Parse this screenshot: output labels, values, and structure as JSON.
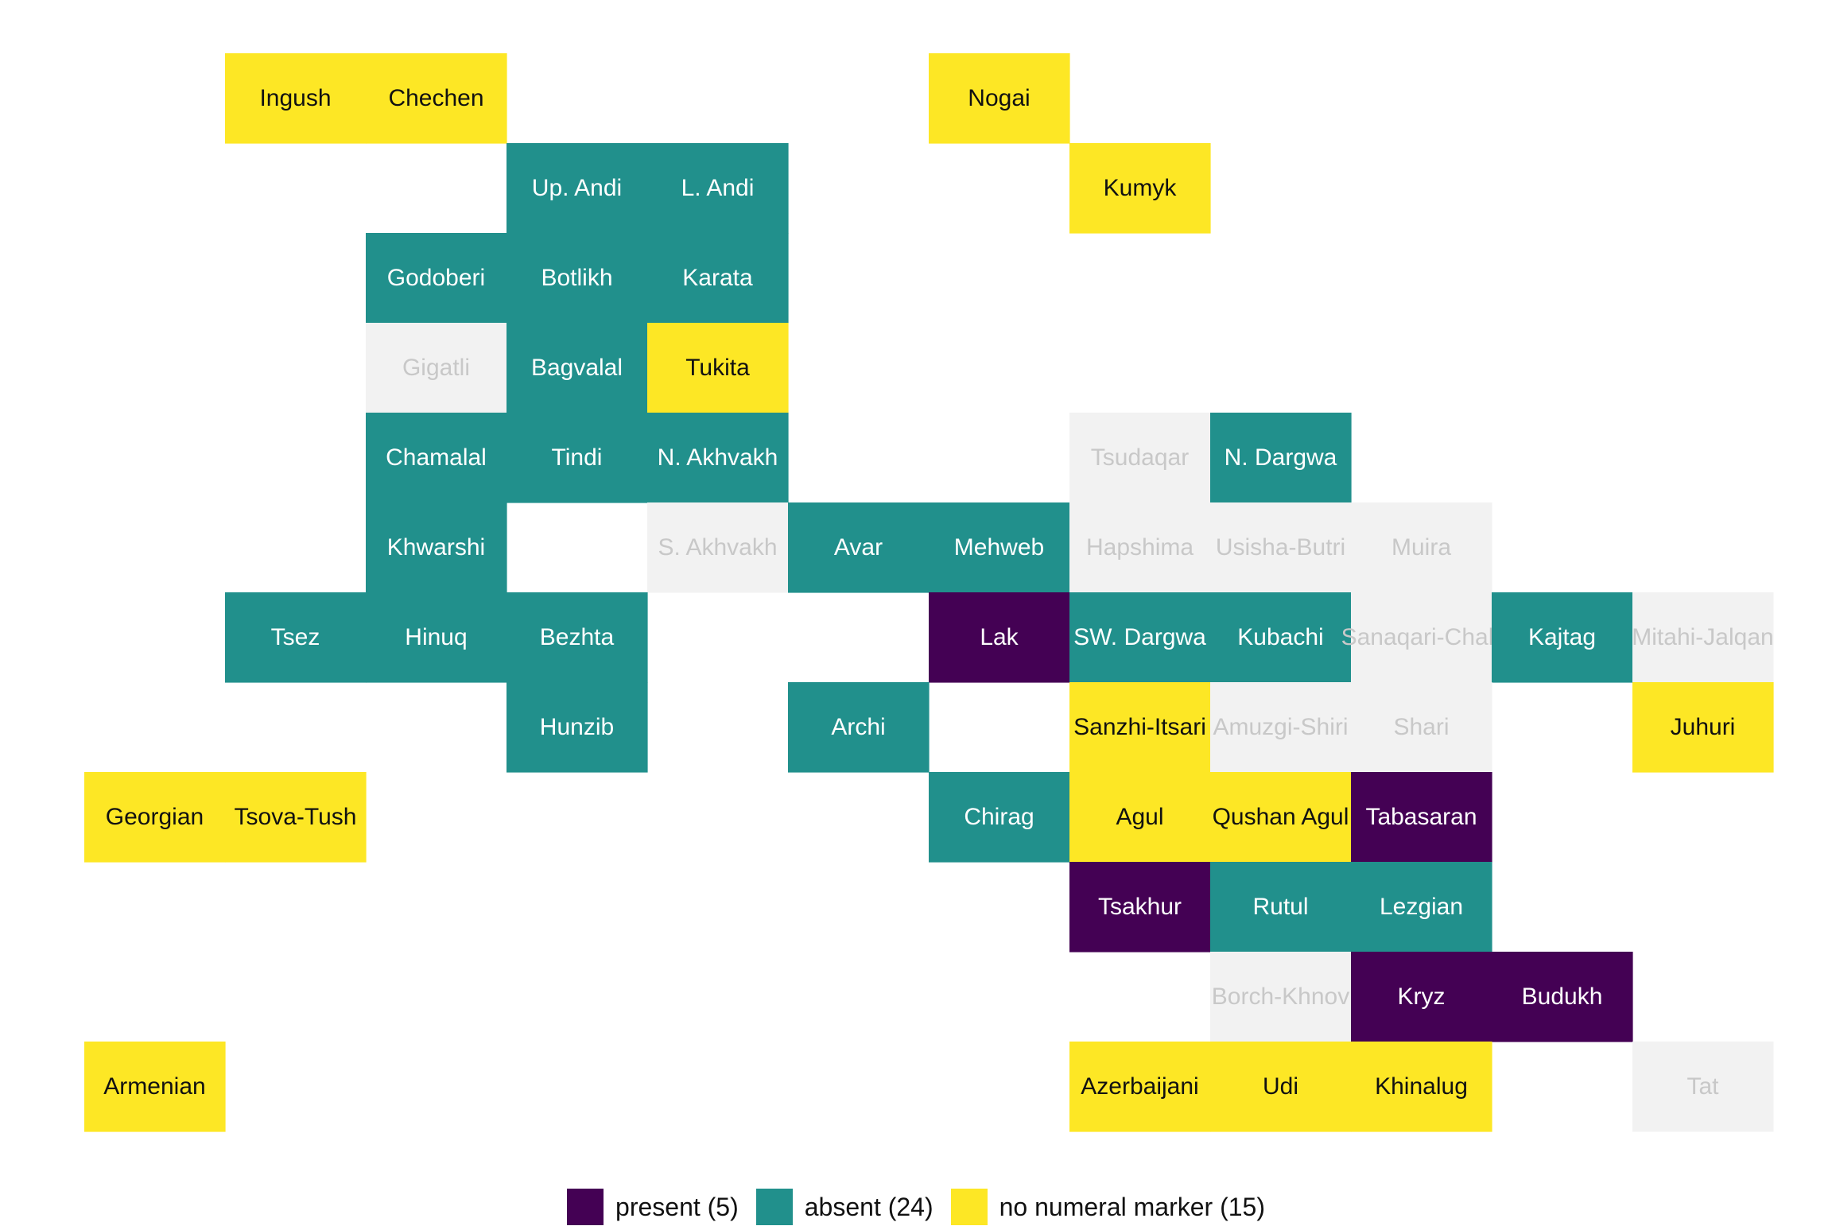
{
  "chart_data": {
    "type": "heatmap",
    "title": "",
    "categories": [
      {
        "key": "present",
        "label": "present (5)",
        "color": "#440154",
        "text_color": "#ffffff"
      },
      {
        "key": "absent",
        "label": "absent (24)",
        "color": "#21908C",
        "text_color": "#ffffff"
      },
      {
        "key": "none",
        "label": "no numeral marker (15)",
        "color": "#FDE725",
        "text_color": "#111111"
      },
      {
        "key": "na",
        "label": "",
        "color": "#F2F2F2",
        "text_color": "#C8C8C8"
      }
    ],
    "cells": [
      {
        "label": "Ingush",
        "col": 2,
        "row": 1,
        "cat": "none"
      },
      {
        "label": "Chechen",
        "col": 3,
        "row": 1,
        "cat": "none"
      },
      {
        "label": "Nogai",
        "col": 7,
        "row": 1,
        "cat": "none"
      },
      {
        "label": "Up. Andi",
        "col": 4,
        "row": 2,
        "cat": "absent"
      },
      {
        "label": "L. Andi",
        "col": 5,
        "row": 2,
        "cat": "absent"
      },
      {
        "label": "Kumyk",
        "col": 8,
        "row": 2,
        "cat": "none"
      },
      {
        "label": "Godoberi",
        "col": 3,
        "row": 3,
        "cat": "absent"
      },
      {
        "label": "Botlikh",
        "col": 4,
        "row": 3,
        "cat": "absent"
      },
      {
        "label": "Karata",
        "col": 5,
        "row": 3,
        "cat": "absent"
      },
      {
        "label": "Gigatli",
        "col": 3,
        "row": 4,
        "cat": "na"
      },
      {
        "label": "Bagvalal",
        "col": 4,
        "row": 4,
        "cat": "absent"
      },
      {
        "label": "Tukita",
        "col": 5,
        "row": 4,
        "cat": "none"
      },
      {
        "label": "Chamalal",
        "col": 3,
        "row": 5,
        "cat": "absent"
      },
      {
        "label": "Tindi",
        "col": 4,
        "row": 5,
        "cat": "absent"
      },
      {
        "label": "N. Akhvakh",
        "col": 5,
        "row": 5,
        "cat": "absent"
      },
      {
        "label": "Tsudaqar",
        "col": 8,
        "row": 5,
        "cat": "na"
      },
      {
        "label": "N. Dargwa",
        "col": 9,
        "row": 5,
        "cat": "absent"
      },
      {
        "label": "Khwarshi",
        "col": 3,
        "row": 6,
        "cat": "absent"
      },
      {
        "label": "S. Akhvakh",
        "col": 5,
        "row": 6,
        "cat": "na"
      },
      {
        "label": "Avar",
        "col": 6,
        "row": 6,
        "cat": "absent"
      },
      {
        "label": "Mehweb",
        "col": 7,
        "row": 6,
        "cat": "absent"
      },
      {
        "label": "Hapshima",
        "col": 8,
        "row": 6,
        "cat": "na"
      },
      {
        "label": "Usisha-Butri",
        "col": 9,
        "row": 6,
        "cat": "na"
      },
      {
        "label": "Muira",
        "col": 10,
        "row": 6,
        "cat": "na"
      },
      {
        "label": "Tsez",
        "col": 2,
        "row": 7,
        "cat": "absent"
      },
      {
        "label": "Hinuq",
        "col": 3,
        "row": 7,
        "cat": "absent"
      },
      {
        "label": "Bezhta",
        "col": 4,
        "row": 7,
        "cat": "absent"
      },
      {
        "label": "Lak",
        "col": 7,
        "row": 7,
        "cat": "present"
      },
      {
        "label": "SW. Dargwa",
        "col": 8,
        "row": 7,
        "cat": "absent"
      },
      {
        "label": "Kubachi",
        "col": 9,
        "row": 7,
        "cat": "absent"
      },
      {
        "label": "Sanaqari-Chah",
        "col": 10,
        "row": 7,
        "cat": "na"
      },
      {
        "label": "Kajtag",
        "col": 11,
        "row": 7,
        "cat": "absent"
      },
      {
        "label": "Mitahi-Jalqan",
        "col": 12,
        "row": 7,
        "cat": "na"
      },
      {
        "label": "Hunzib",
        "col": 4,
        "row": 8,
        "cat": "absent"
      },
      {
        "label": "Archi",
        "col": 6,
        "row": 8,
        "cat": "absent"
      },
      {
        "label": "Sanzhi-Itsari",
        "col": 8,
        "row": 8,
        "cat": "none"
      },
      {
        "label": "Amuzgi-Shiri",
        "col": 9,
        "row": 8,
        "cat": "na"
      },
      {
        "label": "Shari",
        "col": 10,
        "row": 8,
        "cat": "na"
      },
      {
        "label": "Juhuri",
        "col": 12,
        "row": 8,
        "cat": "none"
      },
      {
        "label": "Georgian",
        "col": 1,
        "row": 9,
        "cat": "none"
      },
      {
        "label": "Tsova-Tush",
        "col": 2,
        "row": 9,
        "cat": "none"
      },
      {
        "label": "Chirag",
        "col": 7,
        "row": 9,
        "cat": "absent"
      },
      {
        "label": "Agul",
        "col": 8,
        "row": 9,
        "cat": "none"
      },
      {
        "label": "Qushan Agul",
        "col": 9,
        "row": 9,
        "cat": "none"
      },
      {
        "label": "Tabasaran",
        "col": 10,
        "row": 9,
        "cat": "present"
      },
      {
        "label": "Tsakhur",
        "col": 8,
        "row": 10,
        "cat": "present"
      },
      {
        "label": "Rutul",
        "col": 9,
        "row": 10,
        "cat": "absent"
      },
      {
        "label": "Lezgian",
        "col": 10,
        "row": 10,
        "cat": "absent"
      },
      {
        "label": "Borch-Khnov",
        "col": 9,
        "row": 11,
        "cat": "na"
      },
      {
        "label": "Kryz",
        "col": 10,
        "row": 11,
        "cat": "present"
      },
      {
        "label": "Budukh",
        "col": 11,
        "row": 11,
        "cat": "present"
      },
      {
        "label": "Armenian",
        "col": 1,
        "row": 12,
        "cat": "none"
      },
      {
        "label": "Azerbaijani",
        "col": 8,
        "row": 12,
        "cat": "none"
      },
      {
        "label": "Udi",
        "col": 9,
        "row": 12,
        "cat": "none"
      },
      {
        "label": "Khinalug",
        "col": 10,
        "row": 12,
        "cat": "none"
      },
      {
        "label": "Tat",
        "col": 12,
        "row": 12,
        "cat": "na"
      }
    ],
    "legend_position": "bottom",
    "grid": false
  }
}
